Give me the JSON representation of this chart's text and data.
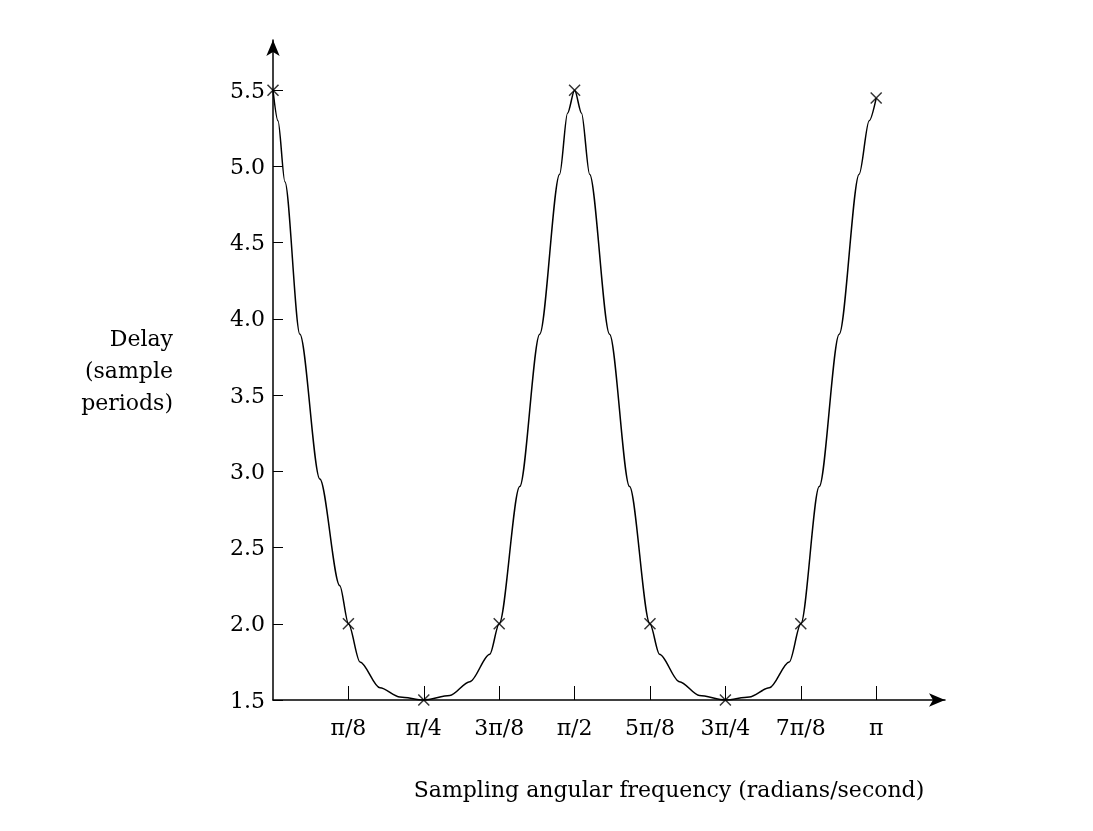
{
  "chart_data": {
    "type": "line",
    "xlabel": "Sampling angular frequency (radians/second)",
    "ylabel": "Delay\n(sample\nperiods)",
    "xlim": [
      0,
      3.5
    ],
    "ylim": [
      1.5,
      5.83
    ],
    "xticks": [
      {
        "value": 0.3927,
        "label": "π/8"
      },
      {
        "value": 0.7854,
        "label": "π/4"
      },
      {
        "value": 1.1781,
        "label": "3π/8"
      },
      {
        "value": 1.5708,
        "label": "π/2"
      },
      {
        "value": 1.9635,
        "label": "5π/8"
      },
      {
        "value": 2.3562,
        "label": "3π/4"
      },
      {
        "value": 2.7489,
        "label": "7π/8"
      },
      {
        "value": 3.1416,
        "label": "π"
      }
    ],
    "yticks": [
      1.5,
      {
        "value": 2,
        "label": "2.0"
      },
      2.5,
      {
        "value": 3,
        "label": "3.0"
      },
      3.5,
      {
        "value": 4,
        "label": "4.0"
      },
      4.5,
      {
        "value": 5,
        "label": "5.0"
      },
      5.5
    ],
    "grid": false,
    "series": [
      {
        "marker": "none",
        "color": "#000000",
        "x": [
          0,
          0.026,
          0.062,
          0.14,
          0.244,
          0.348,
          0.393,
          0.453,
          0.557,
          0.661,
          0.785,
          0.921,
          1.025,
          1.129,
          1.178,
          1.285,
          1.389,
          1.493,
          1.534,
          1.571,
          1.607,
          1.649,
          1.753,
          1.857,
          1.963,
          2.013,
          2.117,
          2.221,
          2.356,
          2.481,
          2.585,
          2.689,
          2.749,
          2.845,
          2.949,
          3.053,
          3.105,
          3.142
        ],
        "values": [
          5.5,
          5.3,
          4.9,
          3.9,
          2.95,
          2.25,
          2.0,
          1.75,
          1.58,
          1.52,
          1.5,
          1.53,
          1.62,
          1.8,
          2.0,
          2.9,
          3.9,
          4.95,
          5.35,
          5.5,
          5.35,
          4.95,
          3.9,
          2.9,
          2.0,
          1.8,
          1.62,
          1.53,
          1.5,
          1.52,
          1.58,
          1.75,
          2.0,
          2.9,
          3.9,
          4.95,
          5.3,
          5.45
        ]
      },
      {
        "type": "scatter",
        "marker": "cross",
        "color": "#000000",
        "x": [
          0,
          0.3927,
          0.7854,
          1.1781,
          1.5708,
          1.9635,
          2.3562,
          2.7489,
          3.1416
        ],
        "values": [
          5.5,
          2.0,
          1.5,
          2.0,
          5.5,
          2.0,
          1.5,
          2.0,
          5.45
        ]
      }
    ]
  }
}
